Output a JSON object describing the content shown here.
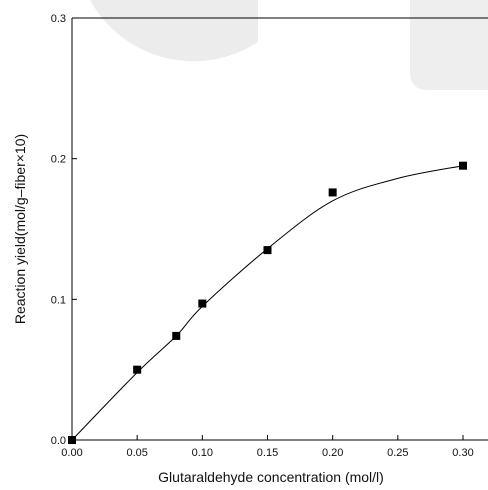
{
  "chart_data": {
    "type": "scatter",
    "xlabel": "Glutaraldehyde concentration (mol/l)",
    "ylabel": "Reaction yield(mol/g–fiber×10)",
    "xlim": [
      0,
      0.3
    ],
    "ylim": [
      0,
      0.3
    ],
    "x_ticks": [
      "0.00",
      "0.05",
      "0.10",
      "0.15",
      "0.20",
      "0.25",
      "0.30"
    ],
    "y_ticks": [
      "0.0",
      "0.1",
      "0.2",
      "0.3"
    ],
    "grid": false,
    "series": [
      {
        "marker": "square",
        "x": [
          0.0,
          0.05,
          0.08,
          0.1,
          0.15,
          0.2,
          0.3
        ],
        "y": [
          0.0,
          0.05,
          0.074,
          0.097,
          0.135,
          0.176,
          0.195
        ]
      }
    ],
    "fit_curve": {
      "style": "smooth-line",
      "x": [
        0.0,
        0.05,
        0.08,
        0.1,
        0.15,
        0.2,
        0.25,
        0.3
      ],
      "y": [
        0.0,
        0.048,
        0.074,
        0.095,
        0.136,
        0.17,
        0.186,
        0.195
      ]
    },
    "colors": {
      "marker": "#000000",
      "line": "#000000",
      "watermark": "#dddddd"
    }
  }
}
